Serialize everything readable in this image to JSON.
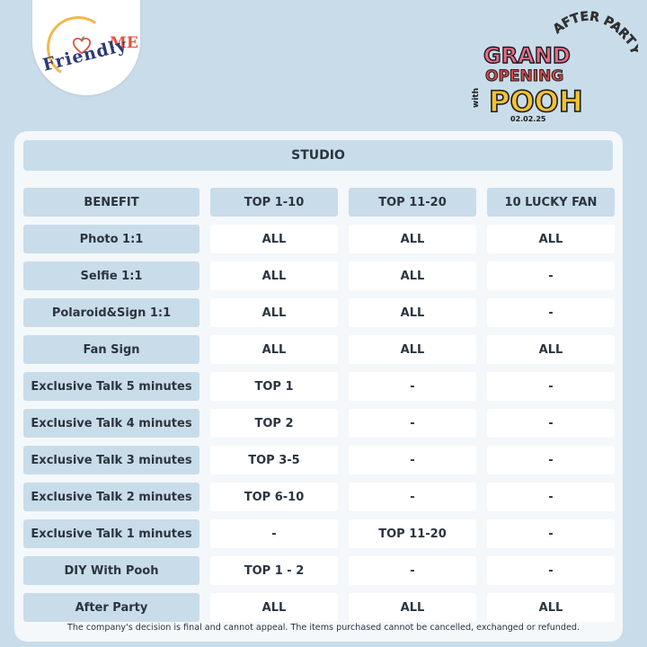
{
  "logo": {
    "me_text": "ME",
    "friendly_text": "Friendly",
    "arc_color": "#f2b84b",
    "heart_color": "#e0533f"
  },
  "event": {
    "line1": "GRAND",
    "line2": "OPENING",
    "with": "with",
    "name": "POOH",
    "date": "02.02.25",
    "after_party": "AFTER PARTY"
  },
  "table": {
    "title": "STUDIO",
    "headers": [
      "BENEFIT",
      "TOP 1-10",
      "TOP 11-20",
      "10 LUCKY FAN"
    ],
    "rows": [
      {
        "benefit": "Photo 1:1",
        "top1_10": "ALL",
        "top11_20": "ALL",
        "lucky": "ALL"
      },
      {
        "benefit": "Selfie 1:1",
        "top1_10": "ALL",
        "top11_20": "ALL",
        "lucky": "-"
      },
      {
        "benefit": "Polaroid&Sign 1:1",
        "top1_10": "ALL",
        "top11_20": "ALL",
        "lucky": "-"
      },
      {
        "benefit": "Fan Sign",
        "top1_10": "ALL",
        "top11_20": "ALL",
        "lucky": "ALL"
      },
      {
        "benefit": "Exclusive Talk 5 minutes",
        "top1_10": "TOP 1",
        "top11_20": "-",
        "lucky": "-"
      },
      {
        "benefit": "Exclusive Talk 4 minutes",
        "top1_10": "TOP 2",
        "top11_20": "-",
        "lucky": "-"
      },
      {
        "benefit": "Exclusive Talk 3 minutes",
        "top1_10": "TOP 3-5",
        "top11_20": "-",
        "lucky": "-"
      },
      {
        "benefit": "Exclusive Talk 2 minutes",
        "top1_10": "TOP 6-10",
        "top11_20": "-",
        "lucky": "-"
      },
      {
        "benefit": "Exclusive Talk 1 minutes",
        "top1_10": "-",
        "top11_20": "TOP 11-20",
        "lucky": "-"
      },
      {
        "benefit": "DIY With Pooh",
        "top1_10": "TOP 1 - 2",
        "top11_20": "-",
        "lucky": "-"
      },
      {
        "benefit": "After Party",
        "top1_10": "ALL",
        "top11_20": "ALL",
        "lucky": "ALL"
      }
    ]
  },
  "footer": "The company's decision is final and cannot appeal. The items purchased cannot be cancelled, exchanged or refunded.",
  "colors": {
    "background": "#c9dce9",
    "card": "#f4f8fb",
    "cell": "#ffffff",
    "text": "#2b3440"
  }
}
